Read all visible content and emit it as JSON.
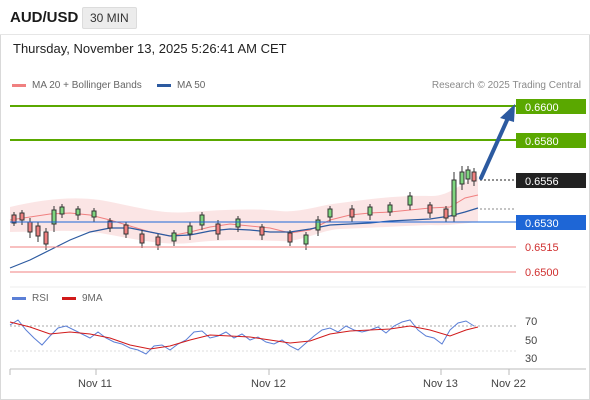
{
  "header": {
    "symbol": "AUD/USD",
    "timeframe": "30 MIN"
  },
  "datetime": "Thursday, November 13, 2025 5:26:41 AM CET",
  "legend": {
    "ma20": "MA 20 + Bollinger Bands",
    "ma50": "MA 50",
    "credit": "Research © 2025 Trading Central"
  },
  "levels": {
    "l1": "0.6600",
    "l2": "0.6580",
    "current": "0.6556",
    "l3": "0.6530",
    "l4": "0.6515",
    "l5": "0.6500"
  },
  "rsi": {
    "label": "RSI",
    "ma_label": "9MA",
    "tick70": "70",
    "tick50": "50",
    "tick30": "30"
  },
  "xaxis": {
    "d1": "Nov 11",
    "d2": "Nov 12",
    "d3": "Nov 13",
    "d4": "Nov 22"
  },
  "colors": {
    "resistance": "#5aa800",
    "support": "#f08080",
    "pivot": "#1e66d6",
    "current": "#222222",
    "ma50": "#2c5aa0",
    "bollinger": "#f7c9c9",
    "rsi": "#5b7fd6",
    "rsi_ma": "#d11a1a",
    "arrow": "#2c5aa0"
  }
}
